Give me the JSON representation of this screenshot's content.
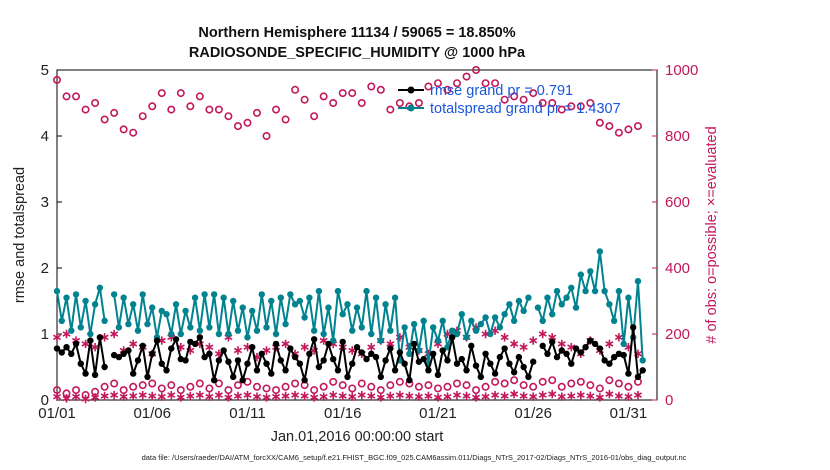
{
  "chart_data": {
    "type": "line",
    "title_line1": "Northern Hemisphere 11134 / 59065 = 18.850%",
    "title_line2": "RADIOSONDE_SPECIFIC_HUMIDITY @ 1000 hPa",
    "xlabel": "Jan.01,2016 00:00:00 start",
    "ylabel": "rmse and totalspread",
    "y2label": "# of obs: o=possible; ×=evaluated",
    "ylim": [
      0,
      5
    ],
    "y2lim": [
      0,
      1000
    ],
    "xlim": [
      1,
      32.5
    ],
    "x_ticks": [
      1,
      6,
      11,
      16,
      21,
      26,
      31
    ],
    "x_tick_labels": [
      "01/01",
      "01/06",
      "01/11",
      "01/16",
      "01/21",
      "01/26",
      "01/31"
    ],
    "y_ticks": [
      0,
      1,
      2,
      3,
      4,
      5
    ],
    "y_tick_labels": [
      "0",
      "1",
      "2",
      "3",
      "4",
      "5"
    ],
    "y2_ticks": [
      0,
      200,
      400,
      600,
      800,
      1000
    ],
    "y2_tick_labels": [
      "0",
      "200",
      "400",
      "600",
      "800",
      "1000"
    ],
    "legend": [
      {
        "label": "rmse grand pr = 0.791",
        "color": "#000000"
      },
      {
        "label": "totalspread grand pr = 1.4307",
        "color": "#00838f"
      }
    ],
    "colors": {
      "rmse": "#000000",
      "totalspread": "#00838f",
      "obs": "#c2185b"
    },
    "series": [
      {
        "name": "rmse",
        "x": [
          1,
          1.25,
          1.5,
          1.75,
          2,
          2.25,
          2.5,
          2.75,
          3,
          3.25,
          3.5,
          3.75,
          4,
          4.25,
          4.5,
          4.75,
          5,
          5.25,
          5.5,
          5.75,
          6,
          6.25,
          6.5,
          6.75,
          7,
          7.25,
          7.5,
          7.75,
          8,
          8.25,
          8.5,
          8.75,
          9,
          9.25,
          9.5,
          9.75,
          10,
          10.25,
          10.5,
          10.75,
          11,
          11.25,
          11.5,
          11.75,
          12,
          12.25,
          12.5,
          12.75,
          13,
          13.25,
          13.5,
          13.75,
          14,
          14.25,
          14.5,
          14.75,
          15,
          15.25,
          15.5,
          15.75,
          16,
          16.25,
          16.5,
          16.75,
          17,
          17.25,
          17.5,
          17.75,
          18,
          18.25,
          18.5,
          18.75,
          19,
          19.25,
          19.5,
          19.75,
          20,
          20.25,
          20.5,
          20.75,
          21,
          21.25,
          21.5,
          21.75,
          22,
          22.25,
          22.5,
          22.75,
          23,
          23.25,
          23.5,
          23.75,
          24,
          24.25,
          24.5,
          24.75,
          25,
          25.25,
          25.5,
          25.75,
          26,
          26.25,
          26.5,
          26.75,
          27,
          27.25,
          27.5,
          27.75,
          28,
          28.25,
          28.5,
          28.75,
          29,
          29.25,
          29.5,
          29.75,
          30,
          30.25,
          30.5,
          30.75,
          31,
          31.25,
          31.5,
          31.75
        ],
        "values": [
          0.78,
          0.72,
          0.8,
          0.7,
          0.85,
          0.55,
          0.4,
          0.9,
          0.38,
          0.95,
          0.5,
          null,
          0.68,
          0.65,
          0.7,
          0.75,
          0.4,
          0.6,
          0.82,
          0.35,
          0.7,
          0.9,
          0.55,
          0.45,
          0.78,
          0.92,
          0.62,
          0.6,
          0.88,
          0.85,
          0.95,
          0.65,
          0.7,
          0.3,
          0.6,
          0.75,
          0.58,
          0.35,
          0.6,
          0.3,
          0.55,
          0.8,
          0.45,
          0.7,
          0.55,
          0.4,
          0.85,
          0.6,
          0.45,
          0.78,
          0.65,
          0.55,
          0.3,
          0.7,
          0.92,
          0.5,
          0.6,
          0.85,
          0.62,
          0.45,
          0.88,
          0.35,
          0.55,
          0.8,
          0.72,
          0.62,
          0.7,
          0.65,
          0.35,
          0.6,
          0.78,
          0.45,
          0.72,
          0.55,
          0.3,
          0.85,
          0.58,
          0.62,
          0.45,
          0.7,
          0.38,
          0.75,
          0.6,
          0.95,
          0.55,
          0.62,
          0.45,
          0.82,
          0.52,
          0.35,
          0.7,
          0.55,
          0.4,
          0.65,
          0.78,
          0.55,
          0.42,
          0.65,
          0.5,
          0.35,
          0.58,
          null,
          0.82,
          0.7,
          0.88,
          0.65,
          0.75,
          0.7,
          0.55,
          0.78,
          0.72,
          0.8,
          0.9,
          0.85,
          0.78,
          0.6,
          0.55,
          0.65,
          0.7,
          0.68,
          0.4,
          1.1,
          0.35,
          0.45
        ]
      },
      {
        "name": "totalspread",
        "x": [
          1,
          1.25,
          1.5,
          1.75,
          2,
          2.25,
          2.5,
          2.75,
          3,
          3.25,
          3.5,
          3.75,
          4,
          4.25,
          4.5,
          4.75,
          5,
          5.25,
          5.5,
          5.75,
          6,
          6.25,
          6.5,
          6.75,
          7,
          7.25,
          7.5,
          7.75,
          8,
          8.25,
          8.5,
          8.75,
          9,
          9.25,
          9.5,
          9.75,
          10,
          10.25,
          10.5,
          10.75,
          11,
          11.25,
          11.5,
          11.75,
          12,
          12.25,
          12.5,
          12.75,
          13,
          13.25,
          13.5,
          13.75,
          14,
          14.25,
          14.5,
          14.75,
          15,
          15.25,
          15.5,
          15.75,
          16,
          16.25,
          16.5,
          16.75,
          17,
          17.25,
          17.5,
          17.75,
          18,
          18.25,
          18.5,
          18.75,
          19,
          19.25,
          19.5,
          19.75,
          20,
          20.25,
          20.5,
          20.75,
          21,
          21.25,
          21.5,
          21.75,
          22,
          22.25,
          22.5,
          22.75,
          23,
          23.25,
          23.5,
          23.75,
          24,
          24.25,
          24.5,
          24.75,
          25,
          25.25,
          25.5,
          25.75,
          26,
          26.25,
          26.5,
          26.75,
          27,
          27.25,
          27.5,
          27.75,
          28,
          28.25,
          28.5,
          28.75,
          29,
          29.25,
          29.5,
          29.75,
          30,
          30.25,
          30.5,
          30.75,
          31,
          31.25,
          31.5,
          31.75
        ],
        "values": [
          1.65,
          1.2,
          1.55,
          1.05,
          1.6,
          1.1,
          1.5,
          1.0,
          1.45,
          1.7,
          1.2,
          null,
          1.6,
          1.1,
          1.55,
          1.15,
          1.45,
          1.05,
          1.6,
          1.15,
          1.4,
          0.95,
          1.35,
          1.3,
          1.0,
          1.45,
          1.0,
          1.35,
          1.1,
          1.55,
          1.05,
          1.6,
          1.1,
          1.6,
          1.0,
          1.55,
          1.0,
          1.5,
          1.05,
          1.4,
          0.95,
          1.35,
          1.05,
          1.6,
          1.1,
          1.5,
          1.0,
          1.55,
          1.15,
          1.6,
          1.45,
          1.5,
          1.25,
          1.55,
          1.05,
          1.65,
          1.0,
          1.4,
          0.9,
          1.65,
          1.3,
          1.45,
          1.05,
          1.4,
          1.1,
          1.65,
          1.0,
          1.55,
          0.9,
          1.45,
          1.05,
          1.55,
          0.6,
          1.1,
          0.7,
          1.15,
          0.75,
          1.2,
          0.55,
          1.1,
          0.9,
          1.2,
          0.8,
          1.05,
          1.0,
          1.3,
          0.95,
          1.2,
          1.05,
          1.15,
          1.25,
          1.0,
          1.25,
          1.1,
          1.3,
          1.45,
          1.2,
          1.5,
          1.35,
          1.55,
          null,
          1.4,
          1.2,
          1.55,
          1.3,
          1.65,
          1.45,
          1.55,
          1.7,
          1.4,
          1.9,
          1.65,
          1.95,
          1.65,
          2.25,
          1.65,
          1.45,
          1.2,
          1.65,
          0.85,
          1.55,
          0.95,
          1.8,
          0.6
        ]
      },
      {
        "name": "obs possible",
        "x": [
          1,
          1.5,
          2,
          2.5,
          3,
          3.5,
          4,
          4.5,
          5,
          5.5,
          6,
          6.5,
          7,
          7.5,
          8,
          8.5,
          9,
          9.5,
          10,
          10.5,
          11,
          11.5,
          12,
          12.5,
          13,
          13.5,
          14,
          14.5,
          15,
          15.5,
          16,
          16.5,
          17,
          17.5,
          18,
          18.5,
          19,
          19.5,
          20,
          20.5,
          21,
          21.5,
          22,
          22.5,
          23,
          23.5,
          24,
          24.5,
          25,
          25.5,
          26,
          26.5,
          27,
          27.5,
          28,
          28.5,
          29,
          29.5,
          30,
          30.5,
          31,
          31.5
        ],
        "values": [
          970,
          920,
          920,
          880,
          900,
          850,
          870,
          820,
          810,
          860,
          890,
          930,
          880,
          930,
          890,
          920,
          880,
          880,
          860,
          830,
          840,
          870,
          800,
          880,
          850,
          940,
          910,
          860,
          920,
          900,
          930,
          930,
          900,
          950,
          940,
          880,
          900,
          890,
          900,
          950,
          960,
          940,
          960,
          980,
          1000,
          960,
          960,
          910,
          920,
          910,
          930,
          900,
          900,
          880,
          890,
          890,
          900,
          840,
          830,
          810,
          820,
          830
        ]
      },
      {
        "name": "obs possible (low)",
        "x": [
          1,
          1.5,
          2,
          2.5,
          3,
          3.5,
          4,
          4.5,
          5,
          5.5,
          6,
          6.5,
          7,
          7.5,
          8,
          8.5,
          9,
          9.5,
          10,
          10.5,
          11,
          11.5,
          12,
          12.5,
          13,
          13.5,
          14,
          14.5,
          15,
          15.5,
          16,
          16.5,
          17,
          17.5,
          18,
          18.5,
          19,
          19.5,
          20,
          20.5,
          21,
          21.5,
          22,
          22.5,
          23,
          23.5,
          24,
          24.5,
          25,
          25.5,
          26,
          26.5,
          27,
          27.5,
          28,
          28.5,
          29,
          29.5,
          30,
          30.5,
          31,
          31.5
        ],
        "values": [
          30,
          20,
          30,
          15,
          25,
          40,
          50,
          30,
          40,
          45,
          50,
          35,
          45,
          30,
          40,
          50,
          35,
          50,
          30,
          45,
          55,
          40,
          35,
          30,
          40,
          50,
          45,
          30,
          40,
          55,
          45,
          35,
          50,
          40,
          30,
          45,
          55,
          50,
          40,
          45,
          35,
          40,
          50,
          45,
          30,
          40,
          55,
          50,
          60,
          45,
          40,
          55,
          60,
          40,
          50,
          55,
          45,
          35,
          60,
          50,
          40,
          55
        ]
      },
      {
        "name": "obs evaluated",
        "x": [
          1,
          1.5,
          2,
          2.5,
          3,
          3.5,
          4,
          4.5,
          5,
          5.5,
          6,
          6.5,
          7,
          7.5,
          8,
          8.5,
          9,
          9.5,
          10,
          10.5,
          11,
          11.5,
          12,
          12.5,
          13,
          13.5,
          14,
          14.5,
          15,
          15.5,
          16,
          16.5,
          17,
          17.5,
          18,
          18.5,
          19,
          19.5,
          20,
          20.5,
          21,
          21.5,
          22,
          22.5,
          23,
          23.5,
          24,
          24.5,
          25,
          25.5,
          26,
          26.5,
          27,
          27.5,
          28,
          28.5,
          29,
          29.5,
          30,
          30.5,
          31,
          31.5
        ],
        "values": [
          190,
          200,
          180,
          170,
          160,
          190,
          200,
          150,
          170,
          160,
          140,
          180,
          190,
          160,
          150,
          170,
          160,
          140,
          190,
          150,
          160,
          130,
          150,
          160,
          170,
          140,
          160,
          150,
          180,
          170,
          160,
          150,
          140,
          160,
          180,
          170,
          190,
          160,
          150,
          140,
          170,
          200,
          210,
          190,
          220,
          200,
          210,
          190,
          170,
          160,
          180,
          200,
          190,
          170,
          160,
          140,
          180,
          150,
          170,
          190,
          160,
          140
        ]
      },
      {
        "name": "obs evaluated (low)",
        "x": [
          1,
          1.5,
          2,
          2.5,
          3,
          3.5,
          4,
          4.5,
          5,
          5.5,
          6,
          6.5,
          7,
          7.5,
          8,
          8.5,
          9,
          9.5,
          10,
          10.5,
          11,
          11.5,
          12,
          12.5,
          13,
          13.5,
          14,
          14.5,
          15,
          15.5,
          16,
          16.5,
          17,
          17.5,
          18,
          18.5,
          19,
          19.5,
          20,
          20.5,
          21,
          21.5,
          22,
          22.5,
          23,
          23.5,
          24,
          24.5,
          25,
          25.5,
          26,
          26.5,
          27,
          27.5,
          28,
          28.5,
          29,
          29.5,
          30,
          30.5,
          31,
          31.5
        ],
        "values": [
          10,
          5,
          10,
          3,
          8,
          12,
          15,
          10,
          12,
          15,
          12,
          10,
          15,
          8,
          12,
          15,
          10,
          15,
          8,
          12,
          15,
          10,
          8,
          10,
          12,
          15,
          12,
          8,
          10,
          15,
          12,
          10,
          15,
          12,
          8,
          12,
          15,
          12,
          10,
          12,
          8,
          10,
          15,
          12,
          8,
          10,
          15,
          12,
          18,
          12,
          10,
          15,
          18,
          10,
          12,
          15,
          12,
          8,
          18,
          12,
          10,
          15
        ]
      }
    ],
    "data_file": "data file: /Users/raeder/DAI/ATM_forcXX/CAM6_setup/f.e21.FHIST_BGC.f09_025.CAM6assim.011/Diags_NTrS_2017-02/Diags_NTrS_2016-01/obs_diag_output.nc"
  }
}
